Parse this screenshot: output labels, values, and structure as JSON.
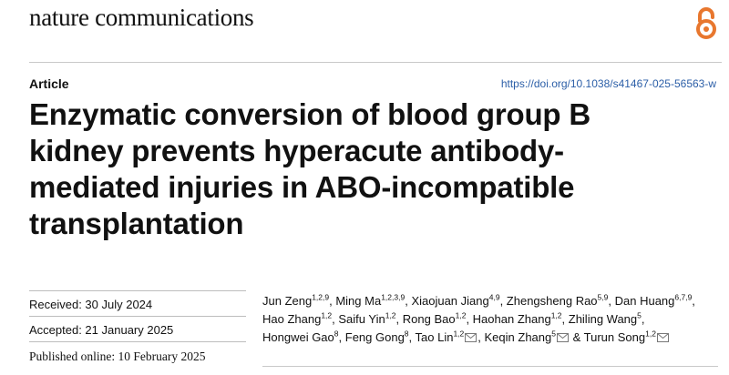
{
  "header": {
    "journal_name": "nature communications",
    "open_access_icon": "open-access-lock-icon",
    "accent_color": "#e8772e"
  },
  "article": {
    "type": "Article",
    "doi": "https://doi.org/10.1038/s41467-025-56563-w",
    "title_lines": [
      "Enzymatic conversion of blood group B",
      "kidney prevents hyperacute antibody-",
      "mediated injuries in ABO-incompatible",
      "transplantation"
    ]
  },
  "dates": {
    "received": "Received: 30 July 2024",
    "accepted": "Accepted: 21 January 2025",
    "published": "Published online: 10 February 2025"
  },
  "authors": [
    {
      "name": "Jun Zeng",
      "aff": "1,2,9",
      "sep": ","
    },
    {
      "name": "Ming Ma",
      "aff": "1,2,3,9",
      "sep": ","
    },
    {
      "name": "Xiaojuan Jiang",
      "aff": "4,9",
      "sep": ","
    },
    {
      "name": "Zhengsheng Rao",
      "aff": "5,9",
      "sep": ","
    },
    {
      "name": "Dan Huang",
      "aff": "6,7,9",
      "sep": ","
    },
    {
      "name": "Hao Zhang",
      "aff": "1,2",
      "sep": ","
    },
    {
      "name": "Saifu Yin",
      "aff": "1,2",
      "sep": ","
    },
    {
      "name": "Rong Bao",
      "aff": "1,2",
      "sep": ","
    },
    {
      "name": "Haohan Zhang",
      "aff": "1,2",
      "sep": ","
    },
    {
      "name": "Zhiling Wang",
      "aff": "5",
      "sep": ","
    },
    {
      "name": "Hongwei Gao",
      "aff": "8",
      "sep": ","
    },
    {
      "name": "Feng Gong",
      "aff": "8",
      "sep": ","
    },
    {
      "name": "Tao Lin",
      "aff": "1,2",
      "sep": ",",
      "corresponding": true
    },
    {
      "name": "Keqin Zhang",
      "aff": "5",
      "sep": "&",
      "corresponding": true
    },
    {
      "name": "Turun Song",
      "aff": "1,2",
      "sep": "",
      "corresponding": true
    }
  ]
}
